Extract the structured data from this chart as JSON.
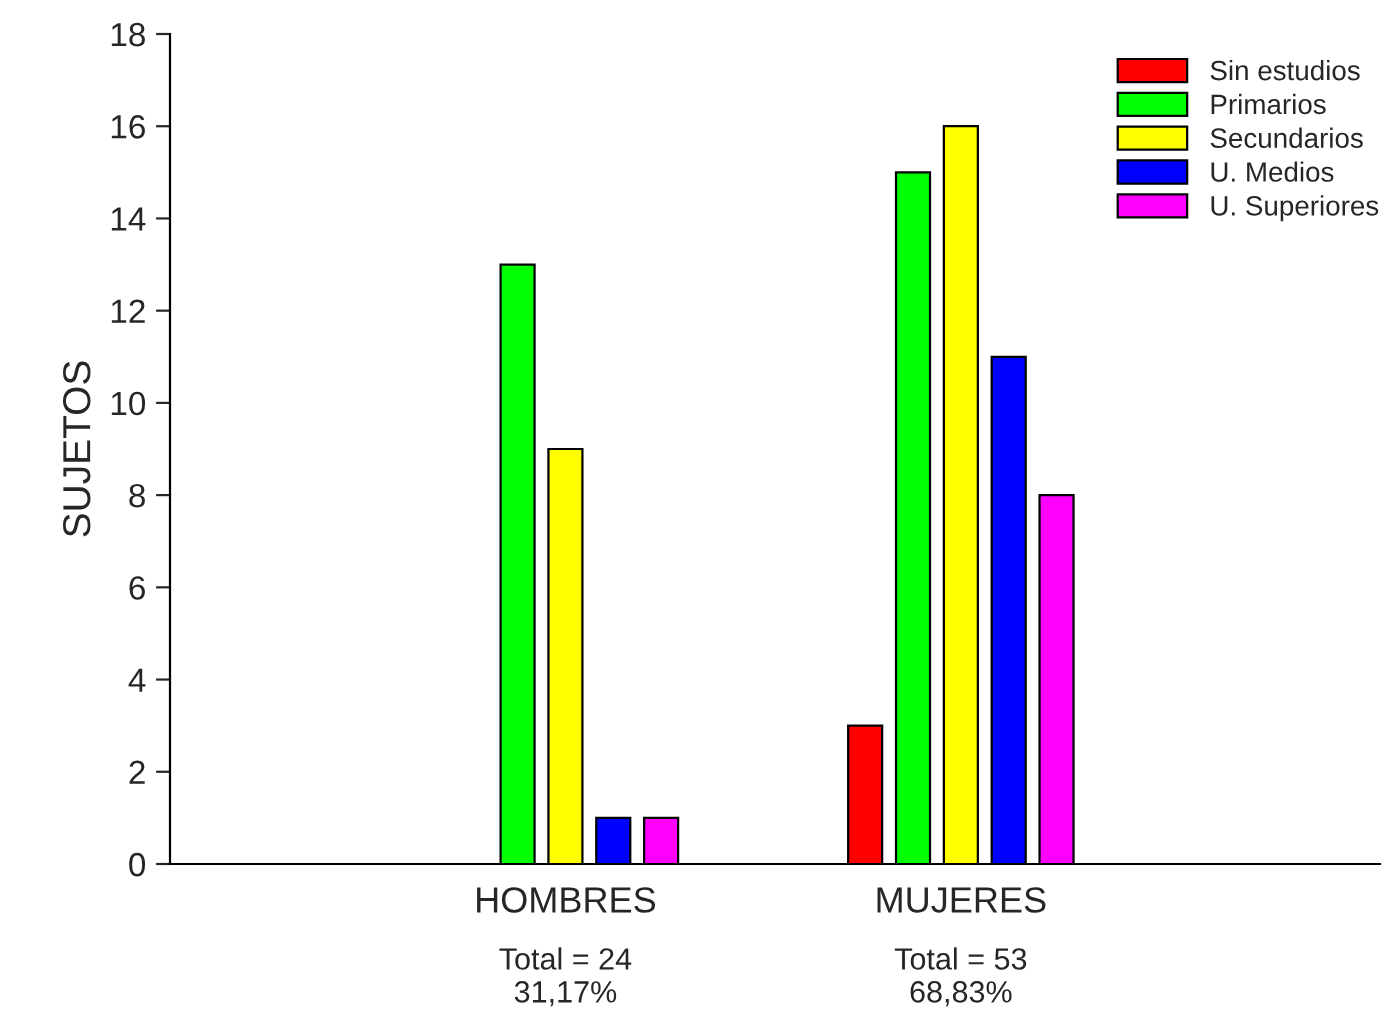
{
  "chart_data": {
    "type": "bar",
    "ylabel": "SUJETOS",
    "categories": [
      "HOMBRES",
      "MUJERES"
    ],
    "series": [
      {
        "name": "Sin estudios",
        "color": "#ff0000",
        "values": [
          0,
          3
        ]
      },
      {
        "name": "Primarios",
        "color": "#00ff00",
        "values": [
          13,
          15
        ]
      },
      {
        "name": "Secundarios",
        "color": "#ffff00",
        "values": [
          9,
          16
        ]
      },
      {
        "name": "U. Medios",
        "color": "#0000ff",
        "values": [
          1,
          11
        ]
      },
      {
        "name": "U. Superiores",
        "color": "#ff00ff",
        "values": [
          1,
          8
        ]
      }
    ],
    "ylim": [
      0,
      18
    ],
    "yticks": [
      0,
      2,
      4,
      6,
      8,
      10,
      12,
      14,
      16,
      18
    ],
    "grid": false,
    "legend": "top right",
    "annotations": [
      "Total = 24\n31,17%",
      "Total = 53\n68,83%"
    ]
  }
}
